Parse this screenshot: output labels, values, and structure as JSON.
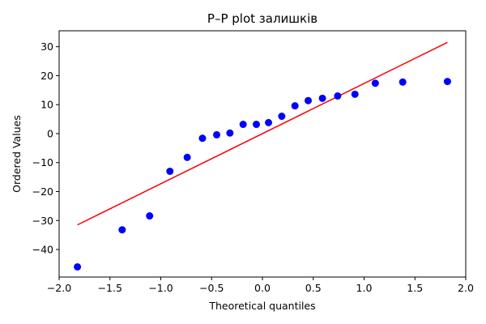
{
  "chart_data": {
    "type": "scatter",
    "title": "P–P plot залишків",
    "xlabel": "Theoretical quantiles",
    "ylabel": "Ordered Values",
    "xlim": [
      -2.0,
      2.0
    ],
    "ylim": [
      -49.5,
      35.5
    ],
    "xticks": [
      -2.0,
      -1.5,
      -1.0,
      -0.5,
      0.0,
      0.5,
      1.0,
      1.5,
      2.0
    ],
    "xtick_labels": [
      "−2.0",
      "−1.5",
      "−1.0",
      "−0.5",
      "0.0",
      "0.5",
      "1.0",
      "1.5",
      "2.0"
    ],
    "yticks": [
      -40,
      -30,
      -20,
      -10,
      0,
      10,
      20,
      30
    ],
    "ytick_labels": [
      "−40",
      "−30",
      "−20",
      "−10",
      "0",
      "10",
      "20",
      "30"
    ],
    "grid": false,
    "points": {
      "color": "#0000ff",
      "x": [
        -1.82,
        -1.38,
        -1.11,
        -0.91,
        -0.74,
        -0.59,
        -0.45,
        -0.32,
        -0.19,
        -0.06,
        0.06,
        0.19,
        0.32,
        0.45,
        0.59,
        0.74,
        0.91,
        1.11,
        1.38,
        1.82
      ],
      "y": [
        -46.0,
        -33.2,
        -28.4,
        -13.0,
        -8.2,
        -1.6,
        -0.4,
        0.2,
        3.2,
        3.2,
        3.8,
        6.0,
        9.6,
        11.4,
        12.2,
        13.0,
        13.6,
        17.4,
        17.8,
        18.0
      ]
    },
    "fit_line": {
      "color": "#ff0000",
      "x": [
        -1.82,
        1.82
      ],
      "y": [
        -31.5,
        31.5
      ]
    }
  }
}
